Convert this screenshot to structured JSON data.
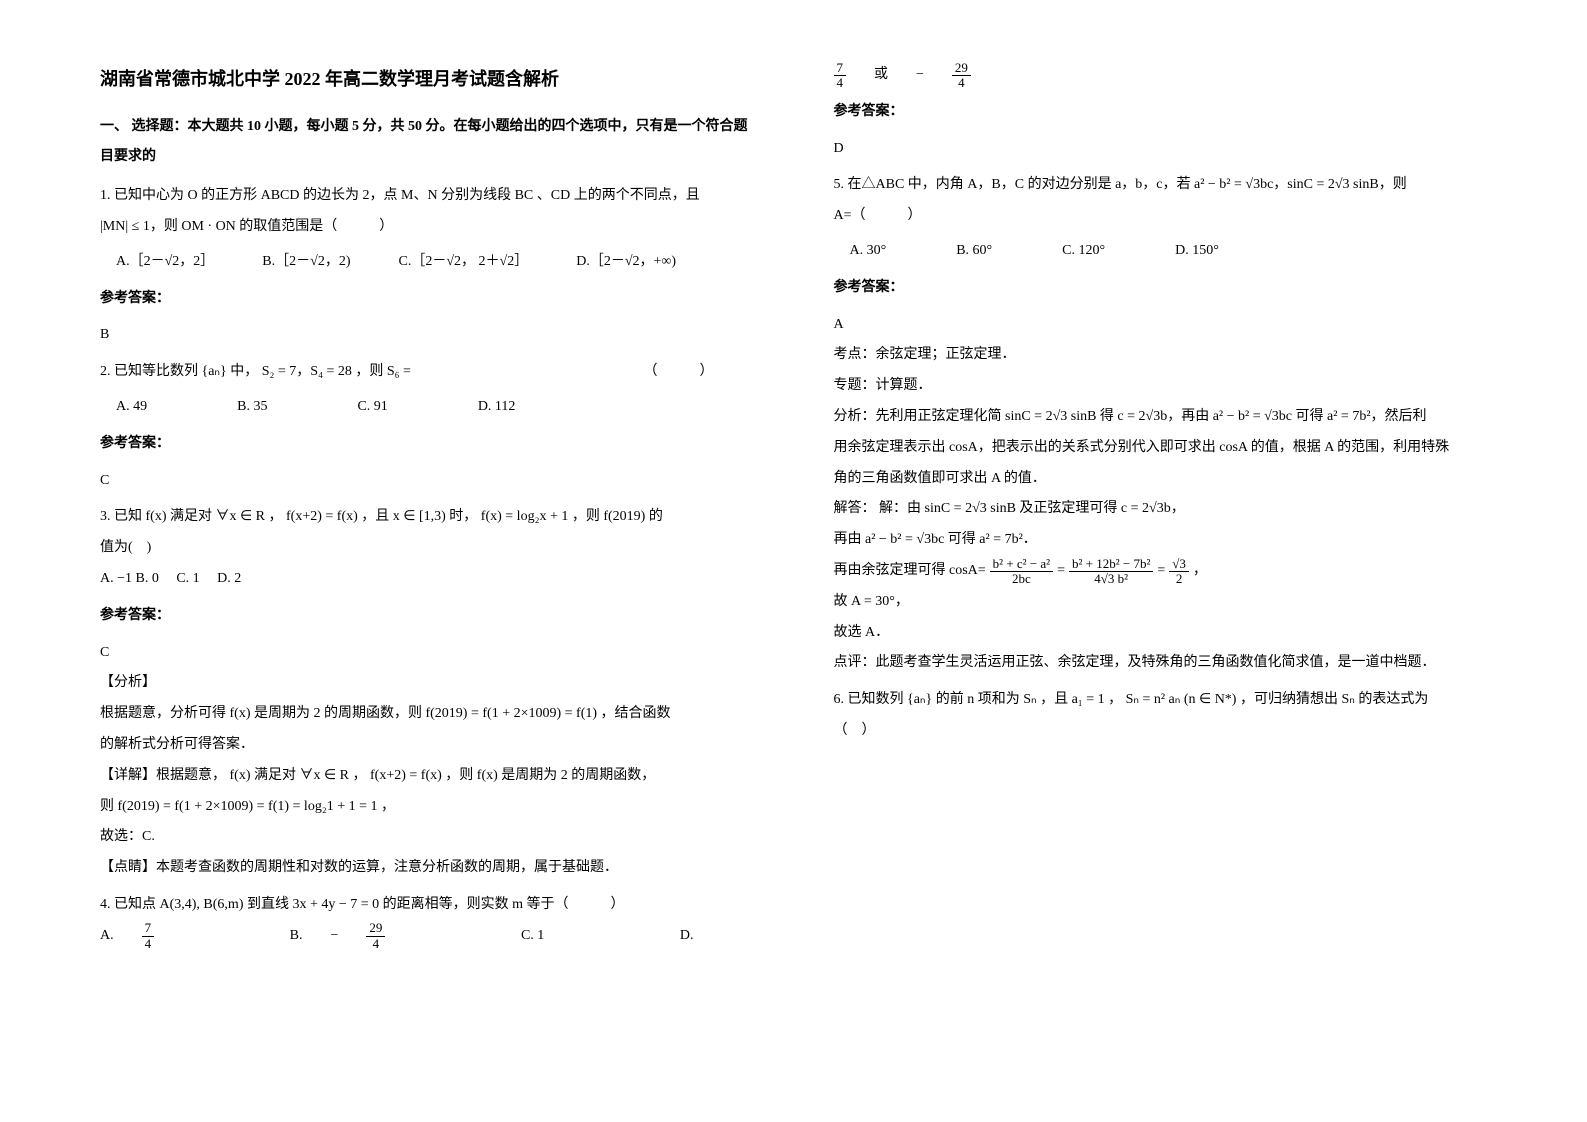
{
  "title": "湖南省常德市城北中学 2022 年高二数学理月考试题含解析",
  "section1_head": "一、 选择题：本大题共 10 小题，每小题 5 分，共 50 分。在每小题给出的四个选项中，只有是一个符合题目要求的",
  "q1_line1": "1. 已知中心为 O 的正方形 ABCD 的边长为 2，点 M、N 分别为线段 BC 、CD 上的两个不同点，且",
  "q1_line2_a": "|MN| ≤ 1，则 OM · ON 的取值范围是（　　　）",
  "q1_optA": "A.［2－√2，2］",
  "q1_optB": "B.［2－√2，2) ",
  "q1_optC": "C.［2－√2， 2＋√2］",
  "q1_optD": "D.［2－√2，+∞)",
  "ans_label": "参考答案：",
  "q1_ans": "B",
  "q2_line": "2. 已知等比数列 {aₙ} 中， S₂ = 7，S₄ = 28 ，则 S₆ =",
  "q2_optA": "A. 49",
  "q2_optB": "B. 35",
  "q2_optC": "C. 91",
  "q2_optD": "D. 112",
  "q2_ans": "C",
  "q3_line": "3. 已知 f(x) 满足对 ∀x ∈ R ， f(x+2) = f(x) ，且 x ∈ [1,3) 时， f(x) = log₂x + 1 ，则 f(2019) 的",
  "q3_line2": "值为(　)",
  "q3_opts": "A. −1  B. 0　 C. 1　 D. 2",
  "q3_ans": "C",
  "analysis_label": "【分析】",
  "q3_a1": "根据题意，分析可得 f(x) 是周期为 2 的周期函数，则 f(2019) = f(1 + 2×1009) = f(1) ，结合函数",
  "q3_a2": "的解析式分析可得答案．",
  "q3_d1": "【详解】根据题意， f(x) 满足对 ∀x ∈ R ， f(x+2) = f(x) ，则 f(x) 是周期为 2 的周期函数，",
  "q3_d2": "则 f(2019) = f(1 + 2×1009) = f(1) = log₂1 + 1 = 1 ，",
  "q3_d3": "故选：C.",
  "q3_p1": "【点睛】本题考查函数的周期性和对数的运算，注意分析函数的周期，属于基础题．",
  "q4_line": "4. 已知点 A(3,4), B(6,m) 到直线 3x + 4y − 7 = 0 的距离相等，则实数 m 等于（　　　）",
  "q4_optA_pfx": "A.",
  "q4_optA_num": "7",
  "q4_optA_den": "4",
  "q4_optB_pfx": "B.",
  "q4_optB_sgn": "−",
  "q4_optB_num": "29",
  "q4_optB_den": "4",
  "q4_optC": "C. 1",
  "q4_optD": "D.",
  "right_top_or": " 或 ",
  "r_f1_num": "7",
  "r_f1_den": "4",
  "r_f2_sgn": "−",
  "r_f2_num": "29",
  "r_f2_den": "4",
  "q4_ans": "D",
  "q5_line1": "5. 在△ABC 中，内角 A，B，C 的对边分别是 a，b，c，若 a² − b² = √3bc，sinC = 2√3 sinB，则",
  "q5_line2": "A=（　　　）",
  "q5_optA": "A. 30°",
  "q5_optB": "B. 60°",
  "q5_optC": "C. 120°",
  "q5_optD": "D. 150°",
  "q5_ans": "A",
  "q5_k1": "考点：余弦定理；正弦定理．",
  "q5_k2": "专题：计算题．",
  "q5_k3a": "分析：先利用正弦定理化简 sinC = 2√3 sinB 得 c = 2√3b，再由 a² − b² = √3bc 可得 a² = 7b²，然后利",
  "q5_k3b": "用余弦定理表示出 cosA，把表示出的关系式分别代入即可求出 cosA 的值，根据 A 的范围，利用特殊",
  "q5_k3c": "角的三角函数值即可求出 A 的值．",
  "q5_s1": "解答： 解：由 sinC = 2√3 sinB 及正弦定理可得 c = 2√3b，",
  "q5_s2": "再由 a² − b² = √3bc 可得 a² = 7b²．",
  "q5_s3_pfx": "再由余弦定理可得 cosA= ",
  "q5_s3_n1": "b² + c² − a²",
  "q5_s3_d1": "2bc",
  "q5_s3_eq": " = ",
  "q5_s3_n2": "b² + 12b² − 7b²",
  "q5_s3_d2": "4√3 b²",
  "q5_s3_eq2": " = ",
  "q5_s3_n3": "√3",
  "q5_s3_d3": "2",
  "q5_s3_end": "，",
  "q5_s4": "故 A = 30°，",
  "q5_s5": "故选 A．",
  "q5_p1": "点评：此题考查学生灵活运用正弦、余弦定理，及特殊角的三角函数值化简求值，是一道中档题．",
  "q6_line1": "6. 已知数列 {aₙ} 的前 n 项和为 Sₙ ，且 a₁ = 1 ， Sₙ = n² aₙ (n ∈ N*) ，可归纳猜想出 Sₙ 的表达式为",
  "q6_line2": "（　）"
}
